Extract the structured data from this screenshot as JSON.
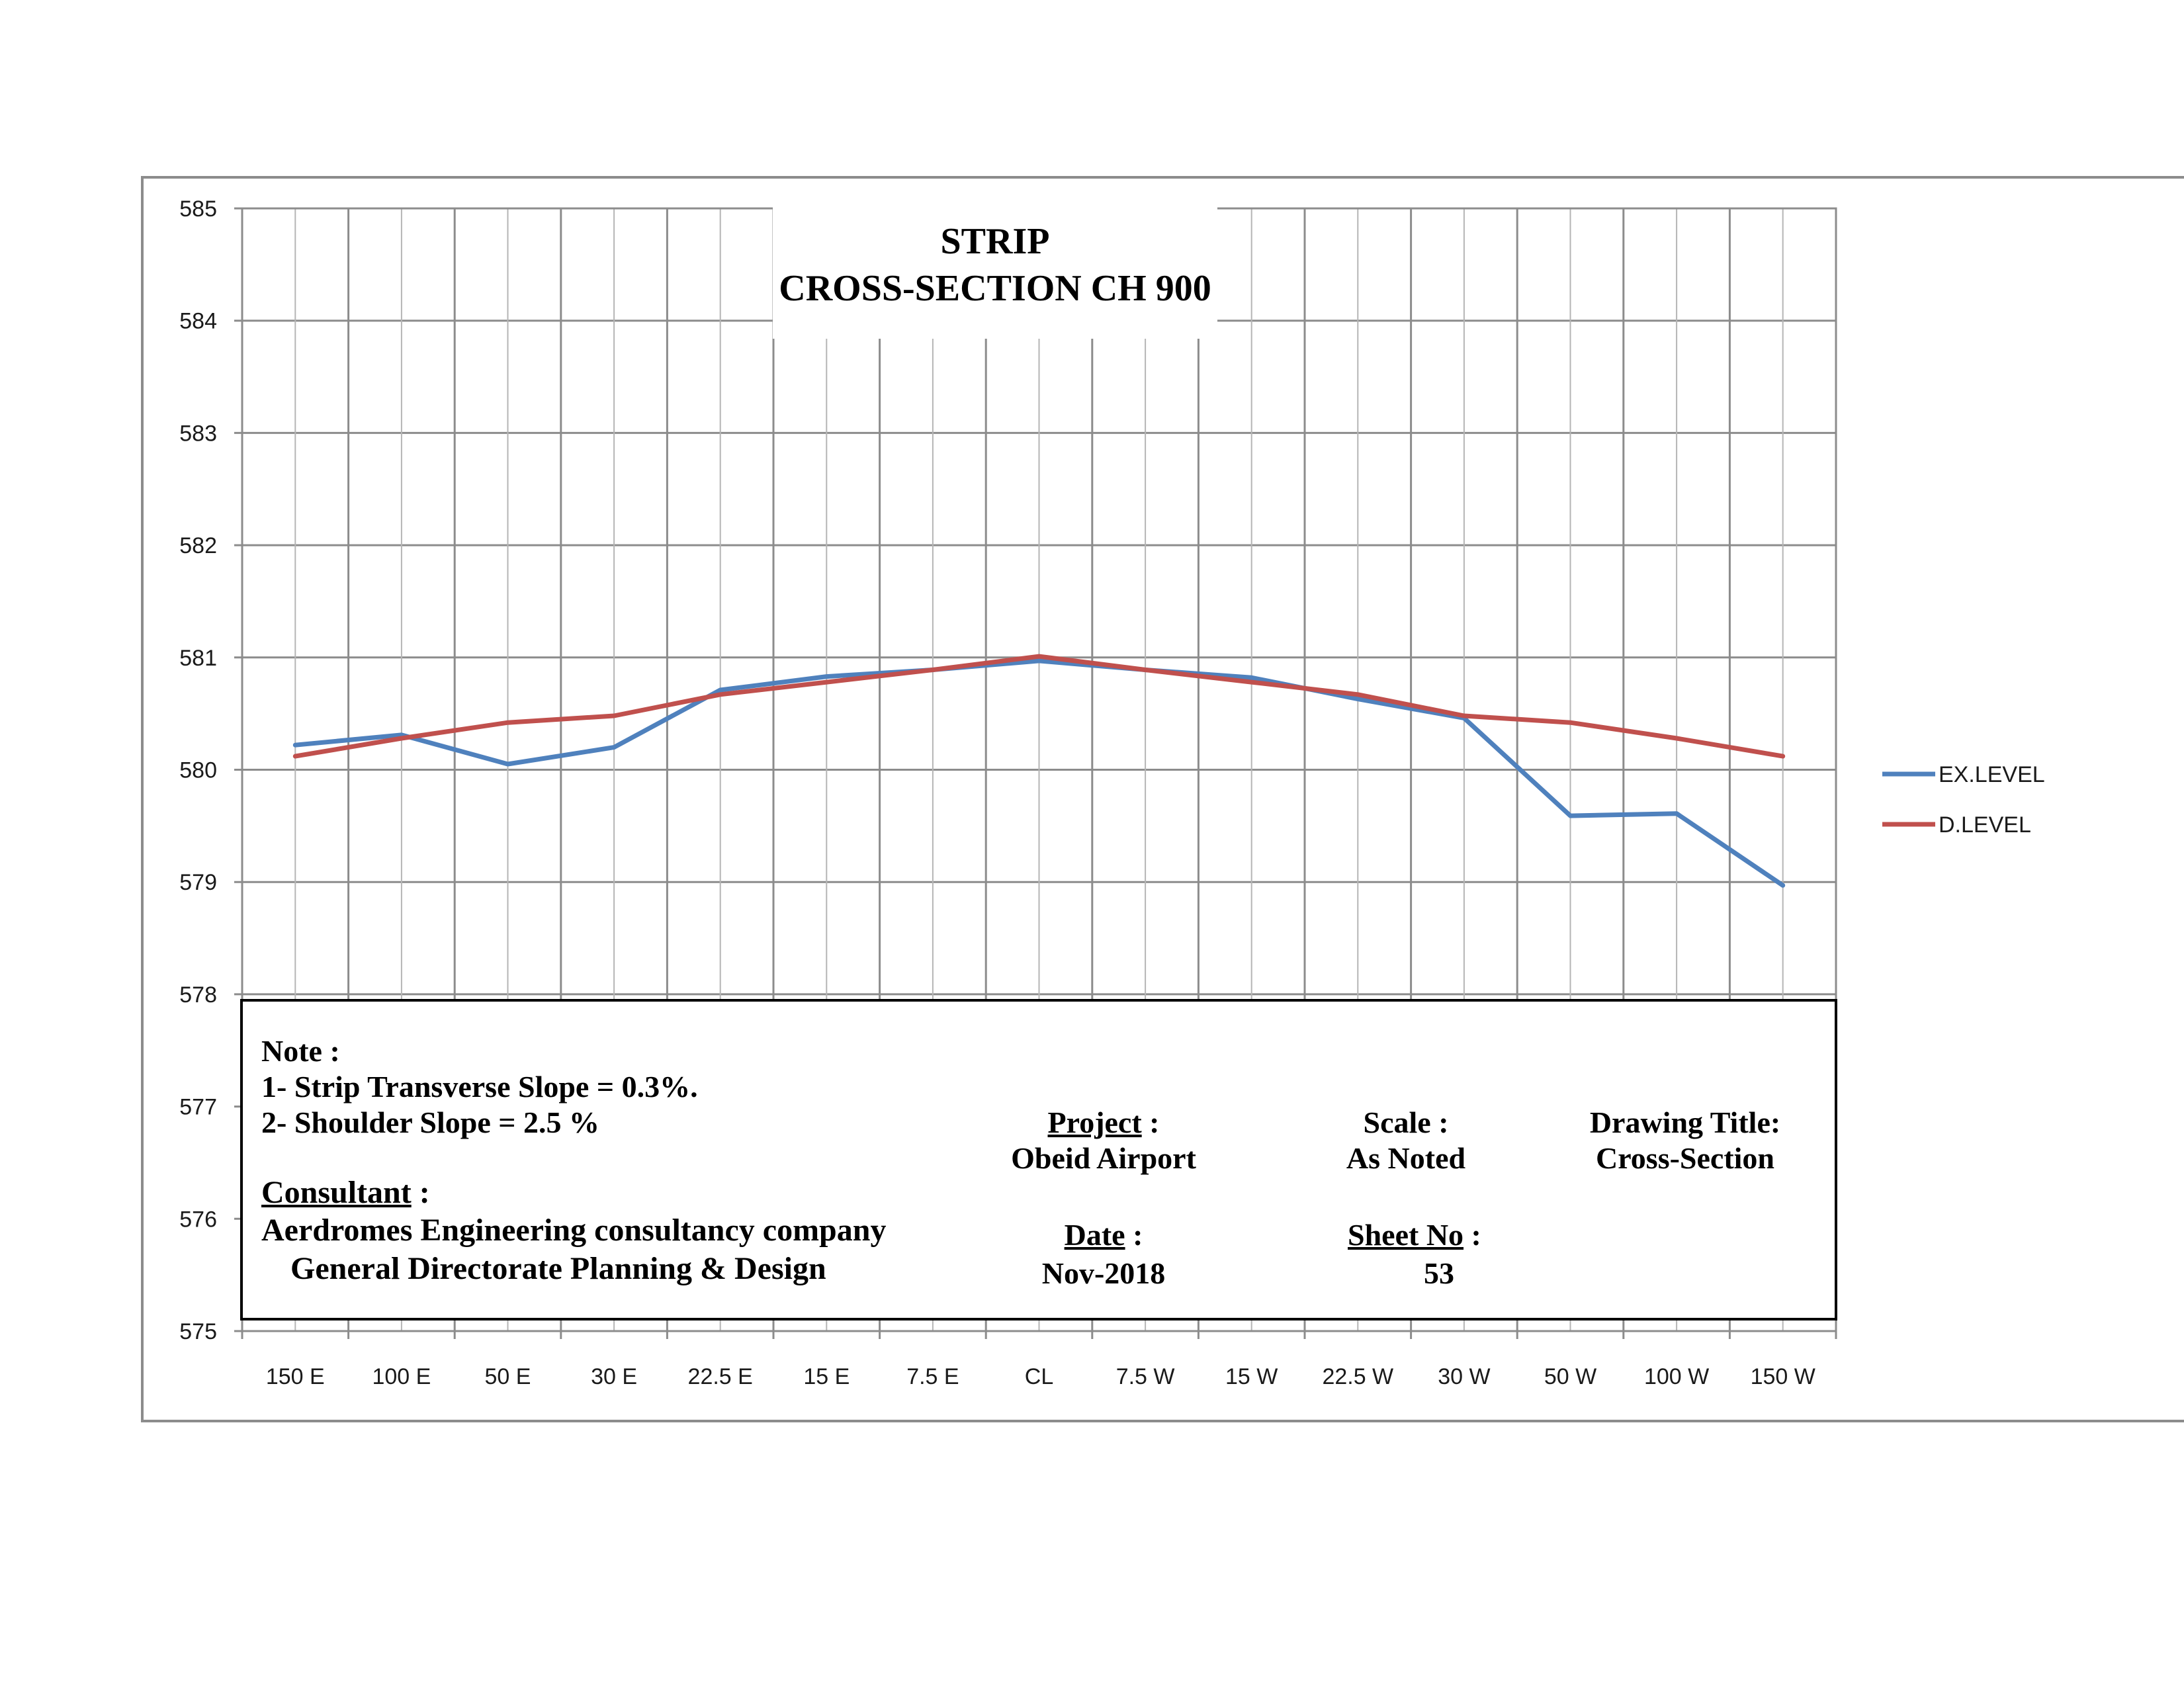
{
  "chart_data": {
    "type": "line",
    "title": [
      "STRIP",
      "CROSS-SECTION CH 900"
    ],
    "categories": [
      "150 E",
      "100 E",
      "50 E",
      "30 E",
      "22.5 E",
      "15 E",
      "7.5 E",
      "CL",
      "7.5 W",
      "15 W",
      "22.5 W",
      "30 W",
      "50 W",
      "100 W",
      "150 W"
    ],
    "series": [
      {
        "name": "EX.LEVEL",
        "color": "#4f81bd",
        "values": [
          580.22,
          580.31,
          580.05,
          580.2,
          580.71,
          580.83,
          580.89,
          580.97,
          580.89,
          580.82,
          580.63,
          580.46,
          579.59,
          579.61,
          578.97
        ]
      },
      {
        "name": "D.LEVEL",
        "color": "#c0504d",
        "values": [
          580.12,
          580.28,
          580.42,
          580.48,
          580.67,
          580.78,
          580.89,
          581.01,
          580.89,
          580.78,
          580.67,
          580.48,
          580.42,
          580.28,
          580.12
        ]
      }
    ],
    "ylim": [
      575,
      585
    ],
    "yticks": [
      585,
      584,
      583,
      582,
      581,
      580,
      579,
      578,
      577,
      576,
      575
    ],
    "xlabel": "",
    "ylabel": "",
    "grid": true,
    "legend": "right"
  },
  "notes": {
    "heading": "Note :",
    "line1": "1- Strip Transverse Slope = 0.3%.",
    "line2": "2- Shoulder Slope = 2.5 %"
  },
  "consultant": {
    "label": "Consultant",
    "colon": " :",
    "line1": "Aerdromes Engineering consultancy company",
    "line2": "General Directorate Planning & Design"
  },
  "project": {
    "label": "Project",
    "colon": " :",
    "value": "Obeid Airport"
  },
  "scale": {
    "label": "Scale :",
    "value": "As Noted"
  },
  "drawing_title": {
    "label": "Drawing Title:",
    "value": "Cross-Section"
  },
  "date": {
    "label": "Date",
    "colon": " :",
    "value": "Nov-2018"
  },
  "sheet": {
    "label": "Sheet No",
    "colon": "  :",
    "value": "53"
  }
}
